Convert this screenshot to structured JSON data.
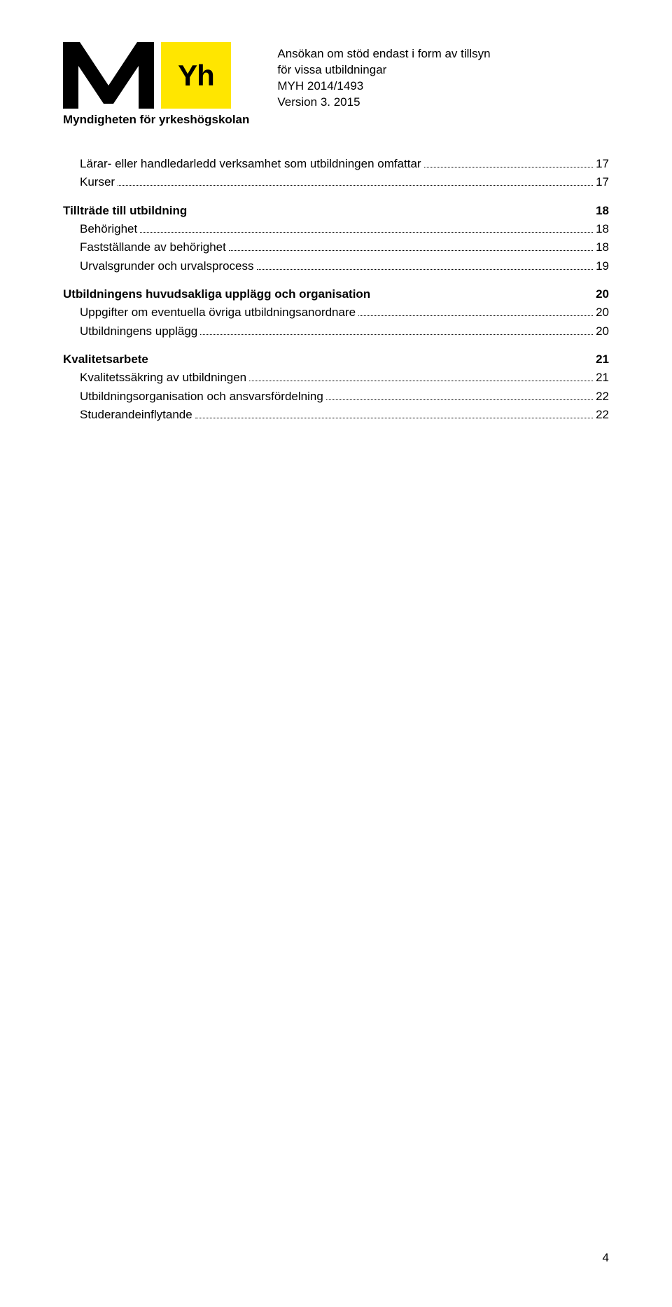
{
  "header": {
    "line1": "Ansökan om stöd endast i form av tillsyn",
    "line2": "för vissa utbildningar",
    "line3": "MYH 2014/1493",
    "line4": "Version 3. 2015",
    "org": "Myndigheten för yrkeshögskolan",
    "yh": "Yh"
  },
  "toc": [
    {
      "label": "Lärar- eller handledarledd verksamhet som utbildningen omfattar",
      "page": "17",
      "indent": 1,
      "bold": false,
      "leaders": true,
      "gap": false
    },
    {
      "label": "Kurser",
      "page": "17",
      "indent": 1,
      "bold": false,
      "leaders": true,
      "gap": false
    },
    {
      "label": "Tillträde till utbildning",
      "page": "18",
      "indent": 0,
      "bold": true,
      "leaders": false,
      "gap": true
    },
    {
      "label": "Behörighet",
      "page": "18",
      "indent": 1,
      "bold": false,
      "leaders": true,
      "gap": false
    },
    {
      "label": "Fastställande av behörighet",
      "page": "18",
      "indent": 1,
      "bold": false,
      "leaders": true,
      "gap": false
    },
    {
      "label": "Urvalsgrunder och urvalsprocess",
      "page": "19",
      "indent": 1,
      "bold": false,
      "leaders": true,
      "gap": false
    },
    {
      "label": "Utbildningens huvudsakliga upplägg och organisation",
      "page": "20",
      "indent": 0,
      "bold": true,
      "leaders": false,
      "gap": true
    },
    {
      "label": "Uppgifter om eventuella övriga utbildningsanordnare",
      "page": "20",
      "indent": 1,
      "bold": false,
      "leaders": true,
      "gap": false
    },
    {
      "label": "Utbildningens upplägg",
      "page": "20",
      "indent": 1,
      "bold": false,
      "leaders": true,
      "gap": false
    },
    {
      "label": "Kvalitetsarbete",
      "page": "21",
      "indent": 0,
      "bold": true,
      "leaders": false,
      "gap": true
    },
    {
      "label": "Kvalitetssäkring av utbildningen",
      "page": "21",
      "indent": 1,
      "bold": false,
      "leaders": true,
      "gap": false
    },
    {
      "label": "Utbildningsorganisation och ansvarsfördelning",
      "page": "22",
      "indent": 1,
      "bold": false,
      "leaders": true,
      "gap": false
    },
    {
      "label": "Studerandeinflytande",
      "page": "22",
      "indent": 1,
      "bold": false,
      "leaders": true,
      "gap": false
    }
  ],
  "pageNumber": "4"
}
